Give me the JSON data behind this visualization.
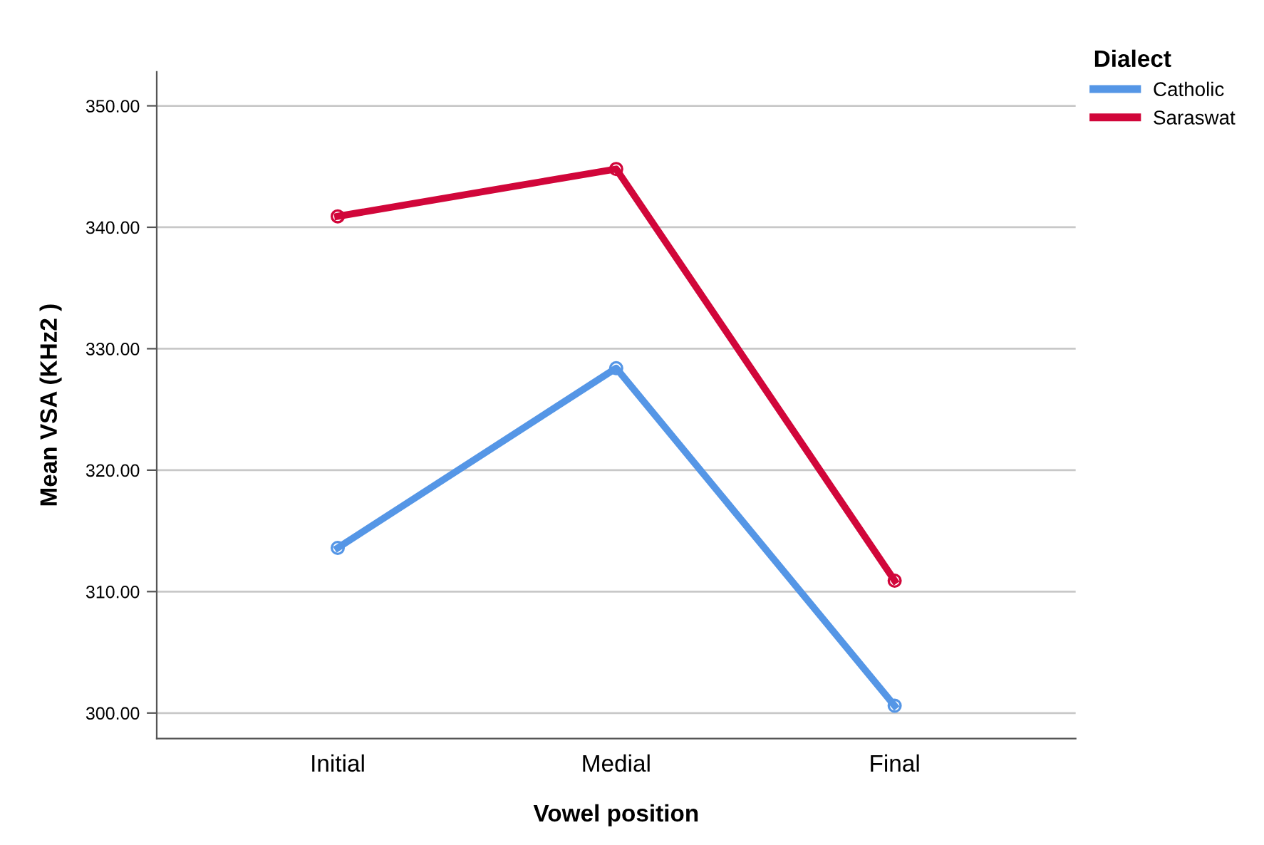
{
  "chart_data": {
    "type": "line",
    "xlabel": "Vowel position",
    "ylabel": "Mean VSA (KHz2 )",
    "legend_title": "Dialect",
    "categories": [
      "Initial",
      "Medial",
      "Final"
    ],
    "series": [
      {
        "name": "Catholic",
        "color": "#5596e6",
        "values": [
          313.6,
          328.4,
          300.6
        ]
      },
      {
        "name": "Saraswat",
        "color": "#d1063a",
        "values": [
          340.9,
          344.8,
          310.9
        ]
      }
    ],
    "ylim": [
      297.9,
      352.8
    ],
    "yticks": [
      {
        "value": 300,
        "label": "300.00"
      },
      {
        "value": 310,
        "label": "310.00"
      },
      {
        "value": 320,
        "label": "320.00"
      },
      {
        "value": 330,
        "label": "330.00"
      },
      {
        "value": 340,
        "label": "340.00"
      },
      {
        "value": 350,
        "label": "350.00"
      }
    ],
    "grid": "y",
    "legend": "top right",
    "marker": "circle",
    "line_style": "solid"
  }
}
